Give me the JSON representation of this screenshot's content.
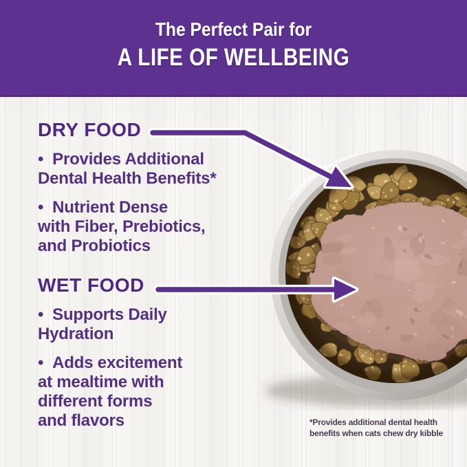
{
  "header": {
    "subtitle": "The Perfect Pair for",
    "title": "A LIFE OF WELLBEING"
  },
  "dry_food": {
    "heading": "DRY FOOD",
    "bullets": [
      "Provides Additional\nDental Health Benefits*",
      "Nutrient Dense\nwith Fiber, Prebiotics,\nand Probiotics"
    ]
  },
  "wet_food": {
    "heading": "WET FOOD",
    "bullets": [
      "Supports Daily\nHydration",
      "Adds excitement\nat mealtime with\ndifferent forms\nand flavors"
    ]
  },
  "footnote": "*Provides additional dental health\nbenefits when cats chew dry kibble",
  "photo": {
    "subject": "stainless steel bowl of dry kibble topped with wet pate cat food"
  },
  "colors": {
    "banner_purple": "#5c3190",
    "heading_purple": "#4e2884",
    "bullet_purple": "#54317e",
    "arrow_purple": "#5b2f8c",
    "footnote_gray_purple": "#4a3b53",
    "kibble_brown": "#a07c3c",
    "pate_pink": "#c49a8e",
    "background_white": "#f7f6f3"
  }
}
